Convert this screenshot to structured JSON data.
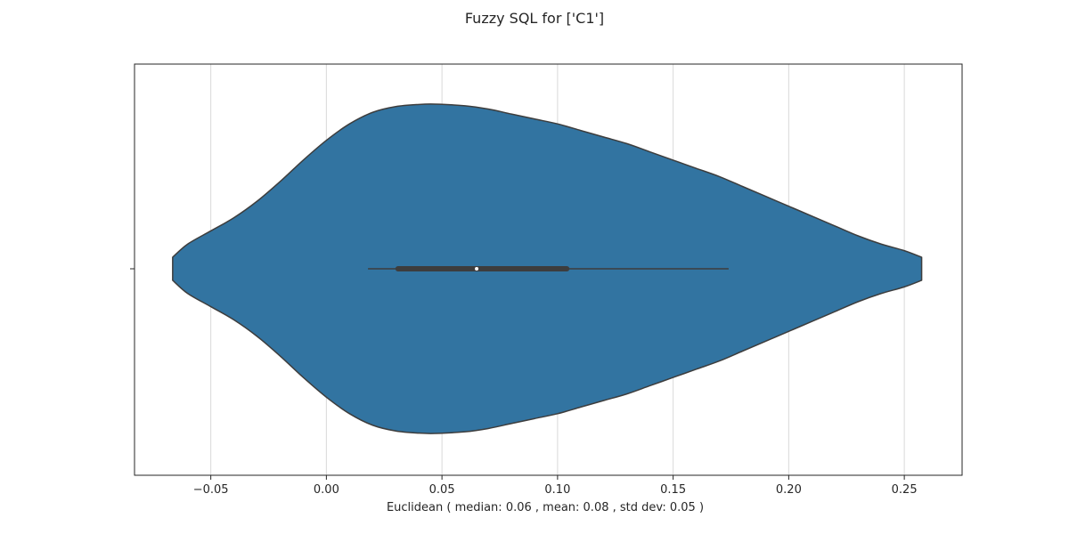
{
  "chart_data": {
    "type": "violin",
    "title": "Fuzzy SQL for ['C1']",
    "xlabel": "Euclidean ( median: 0.06 , mean: 0.08 , std dev: 0.05 )",
    "ylabel": "",
    "xlim": [
      -0.083,
      0.275
    ],
    "xticks": [
      -0.05,
      0.0,
      0.05,
      0.1,
      0.15,
      0.2,
      0.25
    ],
    "xtick_labels": [
      "−0.05",
      "0.00",
      "0.05",
      "0.10",
      "0.15",
      "0.20",
      "0.25"
    ],
    "grid": {
      "x": true,
      "y": false
    },
    "colors": {
      "fill": "#3274a1",
      "edge": "#3d3d3d",
      "grid": "#d9d9d9",
      "box": "#3d3d3d",
      "median": "#ffffff"
    },
    "violin": {
      "density_profile": [
        [
          -0.0665,
          0.07
        ],
        [
          -0.06,
          0.15
        ],
        [
          -0.05,
          0.23
        ],
        [
          -0.04,
          0.31
        ],
        [
          -0.03,
          0.41
        ],
        [
          -0.02,
          0.53
        ],
        [
          -0.01,
          0.66
        ],
        [
          0.0,
          0.78
        ],
        [
          0.01,
          0.88
        ],
        [
          0.02,
          0.95
        ],
        [
          0.03,
          0.985
        ],
        [
          0.04,
          0.998
        ],
        [
          0.047,
          1.0
        ],
        [
          0.06,
          0.99
        ],
        [
          0.07,
          0.97
        ],
        [
          0.08,
          0.94
        ],
        [
          0.09,
          0.91
        ],
        [
          0.1,
          0.88
        ],
        [
          0.11,
          0.84
        ],
        [
          0.12,
          0.8
        ],
        [
          0.13,
          0.76
        ],
        [
          0.14,
          0.71
        ],
        [
          0.15,
          0.66
        ],
        [
          0.16,
          0.61
        ],
        [
          0.17,
          0.56
        ],
        [
          0.18,
          0.5
        ],
        [
          0.19,
          0.44
        ],
        [
          0.2,
          0.38
        ],
        [
          0.21,
          0.32
        ],
        [
          0.22,
          0.26
        ],
        [
          0.23,
          0.2
        ],
        [
          0.24,
          0.15
        ],
        [
          0.25,
          0.11
        ],
        [
          0.2575,
          0.07
        ]
      ],
      "whisker_low": 0.018,
      "q1": 0.031,
      "median": 0.065,
      "q3": 0.104,
      "whisker_high": 0.174
    }
  }
}
